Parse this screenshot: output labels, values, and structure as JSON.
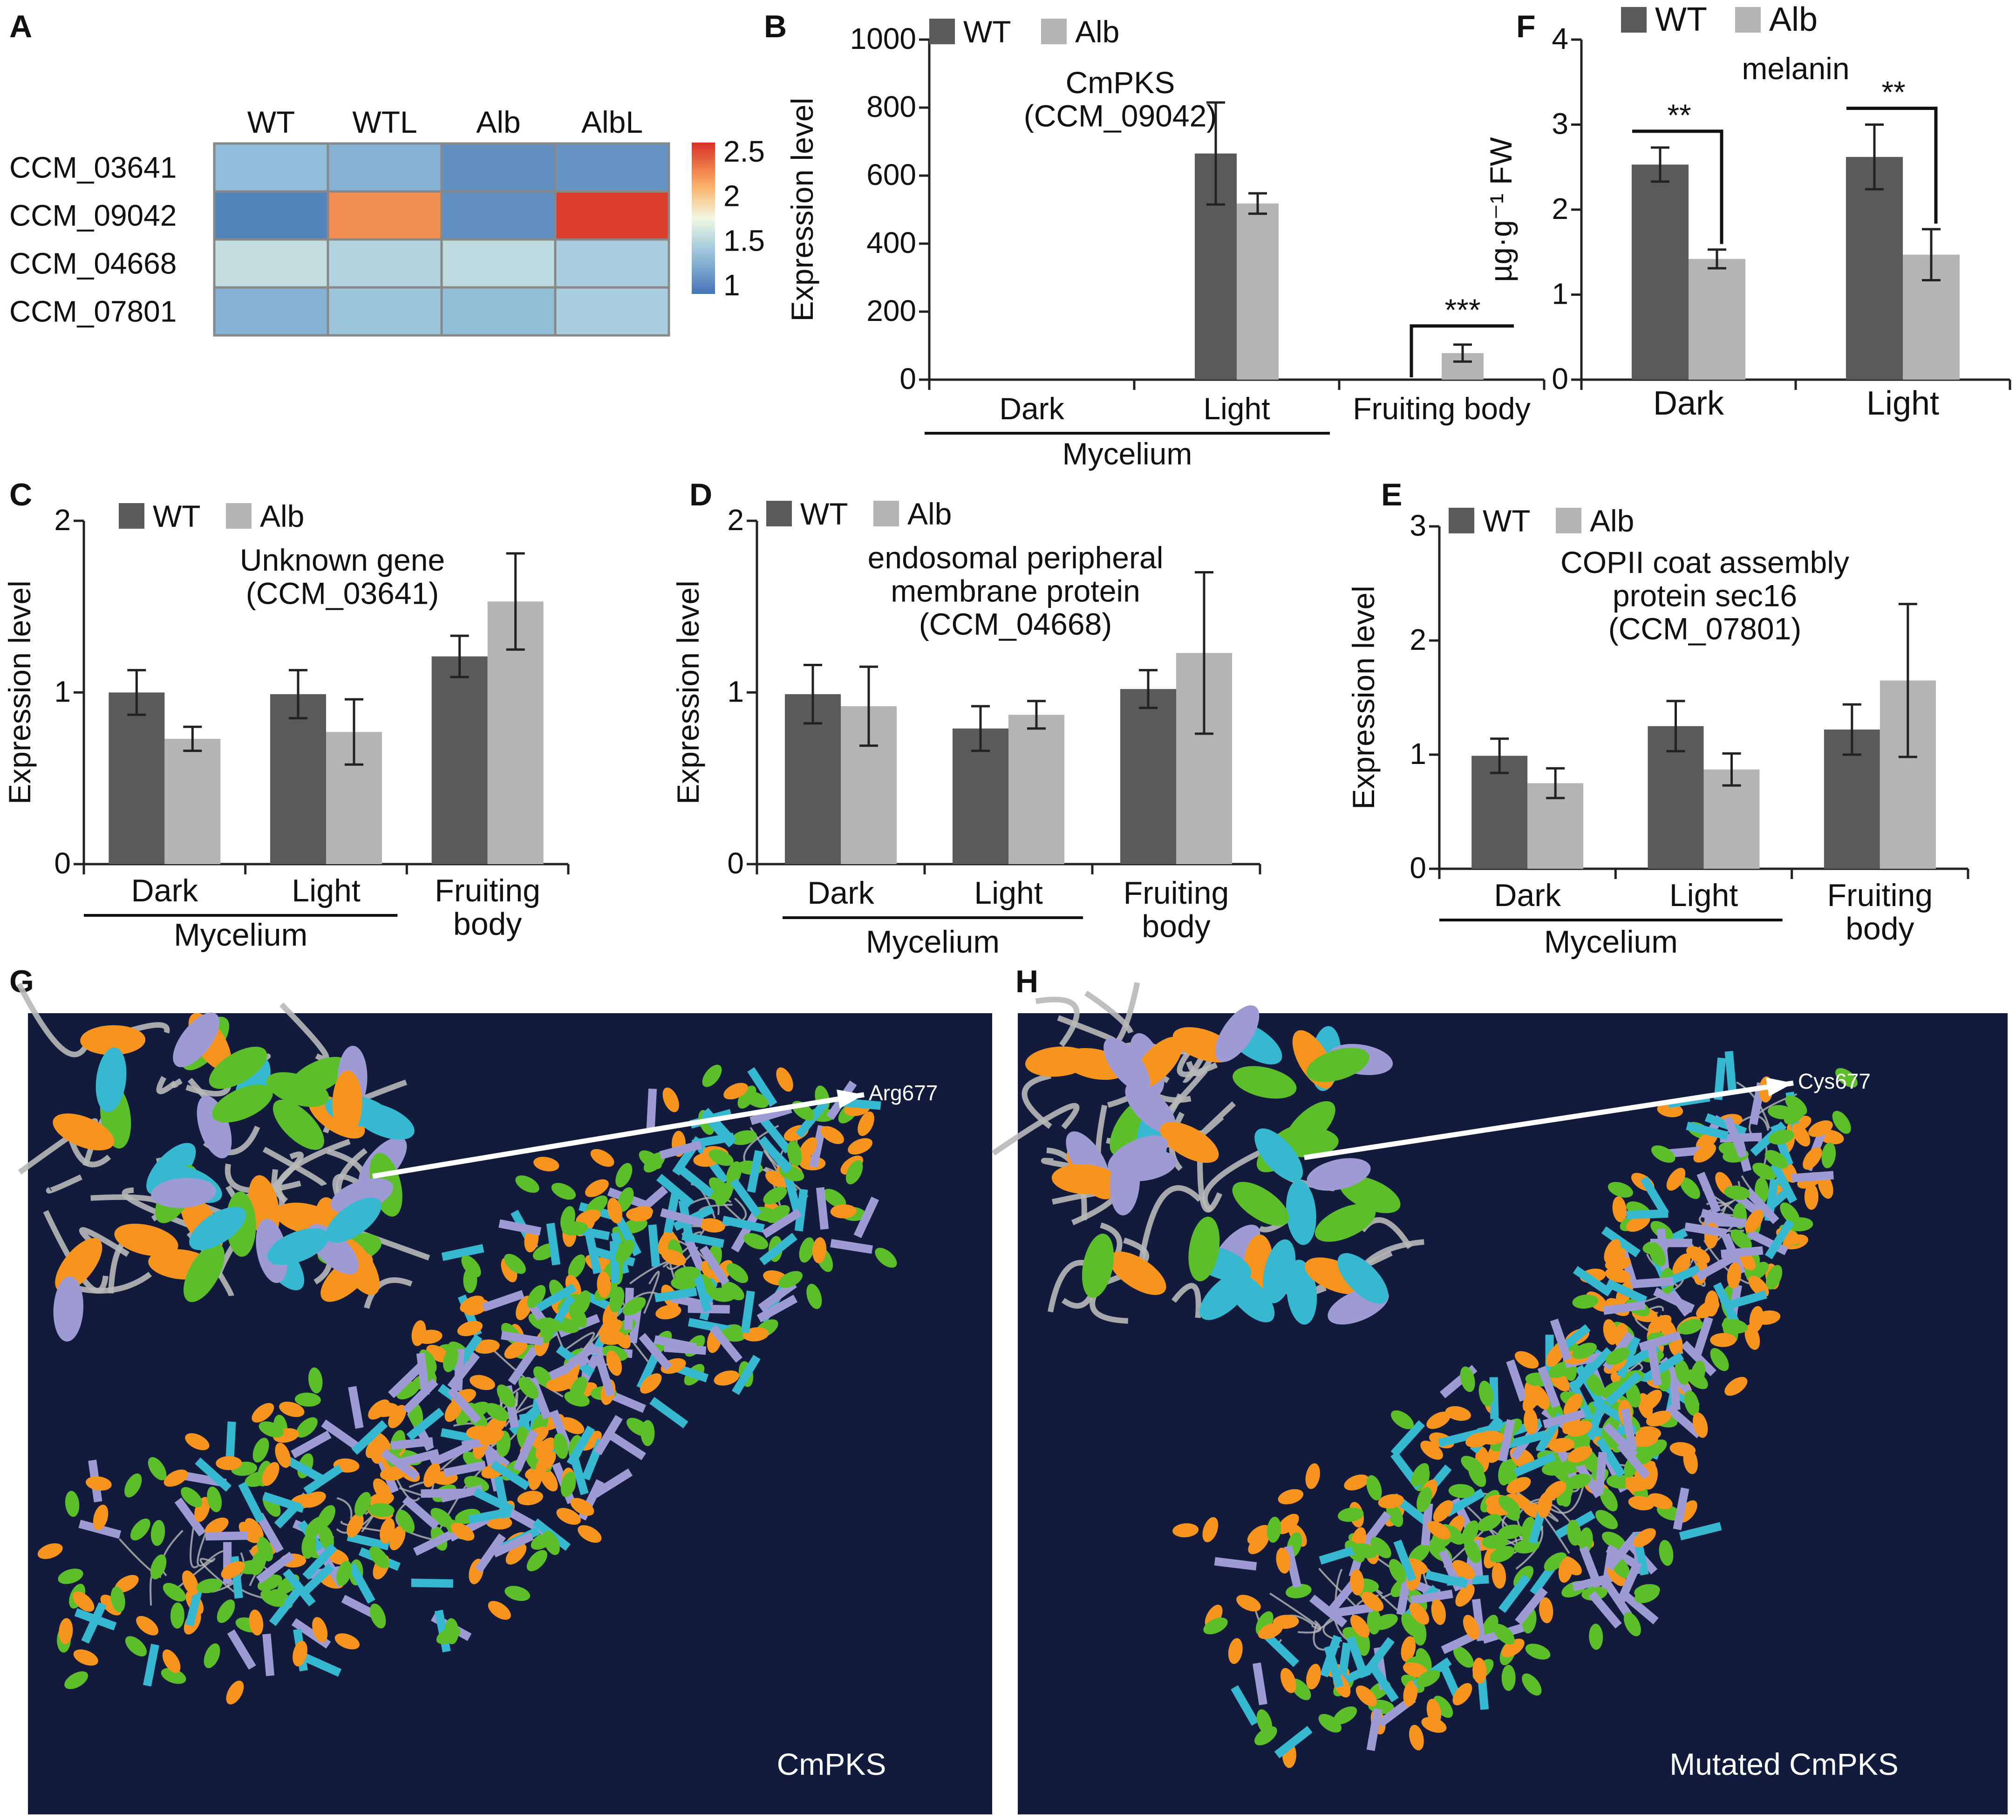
{
  "colors": {
    "wt": "#5a5a5a",
    "alb": "#b4b4b4",
    "axis": "#222222",
    "bg_struct": "#121b3c",
    "helix_orange": "#f7941d",
    "helix_green": "#5cbf2a",
    "sheet_cyan": "#35b8d0",
    "sheet_lavender": "#9d9ad4",
    "coil": "#b8b8b8"
  },
  "legend": {
    "wt": "WT",
    "alb": "Alb"
  },
  "panel_labels": [
    "A",
    "B",
    "C",
    "D",
    "E",
    "F",
    "G",
    "H"
  ],
  "heatmap": {
    "label": "A",
    "columns": [
      "WT",
      "WTL",
      "Alb",
      "AlbL"
    ],
    "rows": [
      "CCM_03641",
      "CCM_09042",
      "CCM_04668",
      "CCM_07801"
    ],
    "values": [
      [
        1.32,
        1.25,
        1.05,
        1.08
      ],
      [
        0.98,
        2.25,
        1.05,
        2.55
      ],
      [
        1.55,
        1.47,
        1.53,
        1.43
      ],
      [
        1.25,
        1.38,
        1.33,
        1.43
      ]
    ],
    "colorbar": {
      "min": 0.9,
      "max": 2.6,
      "ticks": [
        "2.5",
        "2",
        "1.5",
        "1"
      ],
      "tick_values": [
        2.5,
        2,
        1.5,
        1
      ]
    }
  },
  "chart_data": [
    {
      "id": "B",
      "type": "bar",
      "title": [
        "CmPKS",
        "(CCM_09042)"
      ],
      "ylabel": "Expression level",
      "categories": [
        "Dark",
        "Light",
        "Fruiting body"
      ],
      "group_label": "Mycelium",
      "ylim": [
        0,
        1000
      ],
      "yticks": [
        0,
        200,
        400,
        600,
        800,
        1000
      ],
      "series": [
        {
          "name": "WT",
          "values": [
            0,
            665,
            0
          ],
          "errors": [
            0,
            150,
            0
          ]
        },
        {
          "name": "Alb",
          "values": [
            0,
            518,
            78
          ],
          "errors": [
            0,
            30,
            25
          ]
        }
      ],
      "significance": [
        {
          "category": 2,
          "label": "***"
        }
      ]
    },
    {
      "id": "C",
      "type": "bar",
      "title": [
        "Unknown gene",
        "(CCM_03641)"
      ],
      "ylabel": "Expression level",
      "categories": [
        "Dark",
        "Light",
        "Fruiting body"
      ],
      "category_lines": [
        [
          "Dark"
        ],
        [
          "Light"
        ],
        [
          "Fruiting",
          "body"
        ]
      ],
      "group_label": "Mycelium",
      "ylim": [
        0,
        2
      ],
      "yticks": [
        0,
        1,
        2
      ],
      "series": [
        {
          "name": "WT",
          "values": [
            1.0,
            0.99,
            1.21
          ],
          "errors": [
            0.13,
            0.14,
            0.12
          ]
        },
        {
          "name": "Alb",
          "values": [
            0.73,
            0.77,
            1.53
          ],
          "errors": [
            0.07,
            0.19,
            0.28
          ]
        }
      ]
    },
    {
      "id": "D",
      "type": "bar",
      "title": [
        "endosomal peripheral",
        "membrane protein",
        "(CCM_04668)"
      ],
      "ylabel": "Expression level",
      "categories": [
        "Dark",
        "Light",
        "Fruiting body"
      ],
      "category_lines": [
        [
          "Dark"
        ],
        [
          "Light"
        ],
        [
          "Fruiting",
          "body"
        ]
      ],
      "group_label": "Mycelium",
      "ylim": [
        0,
        2
      ],
      "yticks": [
        0,
        1,
        2
      ],
      "series": [
        {
          "name": "WT",
          "values": [
            0.99,
            0.79,
            1.02
          ],
          "errors": [
            0.17,
            0.13,
            0.11
          ]
        },
        {
          "name": "Alb",
          "values": [
            0.92,
            0.87,
            1.23
          ],
          "errors": [
            0.23,
            0.08,
            0.47
          ]
        }
      ]
    },
    {
      "id": "E",
      "type": "bar",
      "title": [
        "COPII coat assembly",
        "protein sec16",
        "(CCM_07801)"
      ],
      "ylabel": "Expression level",
      "categories": [
        "Dark",
        "Light",
        "Fruiting body"
      ],
      "category_lines": [
        [
          "Dark"
        ],
        [
          "Light"
        ],
        [
          "Fruiting",
          "body"
        ]
      ],
      "group_label": "Mycelium",
      "ylim": [
        0,
        3
      ],
      "yticks": [
        0,
        1,
        2,
        3
      ],
      "series": [
        {
          "name": "WT",
          "values": [
            0.99,
            1.25,
            1.22
          ],
          "errors": [
            0.15,
            0.22,
            0.22
          ]
        },
        {
          "name": "Alb",
          "values": [
            0.75,
            0.87,
            1.65
          ],
          "errors": [
            0.13,
            0.14,
            0.67
          ]
        }
      ]
    },
    {
      "id": "F",
      "type": "bar",
      "title": [
        "melanin"
      ],
      "ylabel": "µg·g⁻¹ FW",
      "categories": [
        "Dark",
        "Light"
      ],
      "ylim": [
        0,
        4
      ],
      "yticks": [
        0,
        1,
        2,
        3,
        4
      ],
      "series": [
        {
          "name": "WT",
          "values": [
            2.53,
            2.62
          ],
          "errors": [
            0.2,
            0.38
          ]
        },
        {
          "name": "Alb",
          "values": [
            1.42,
            1.47
          ],
          "errors": [
            0.11,
            0.3
          ]
        }
      ],
      "significance": [
        {
          "category": 0,
          "label": "**"
        },
        {
          "category": 1,
          "label": "**"
        }
      ]
    }
  ],
  "structures": [
    {
      "label": "G",
      "caption": "CmPKS",
      "residue": "Arg677"
    },
    {
      "label": "H",
      "caption": "Mutated CmPKS",
      "residue": "Cys677"
    }
  ]
}
